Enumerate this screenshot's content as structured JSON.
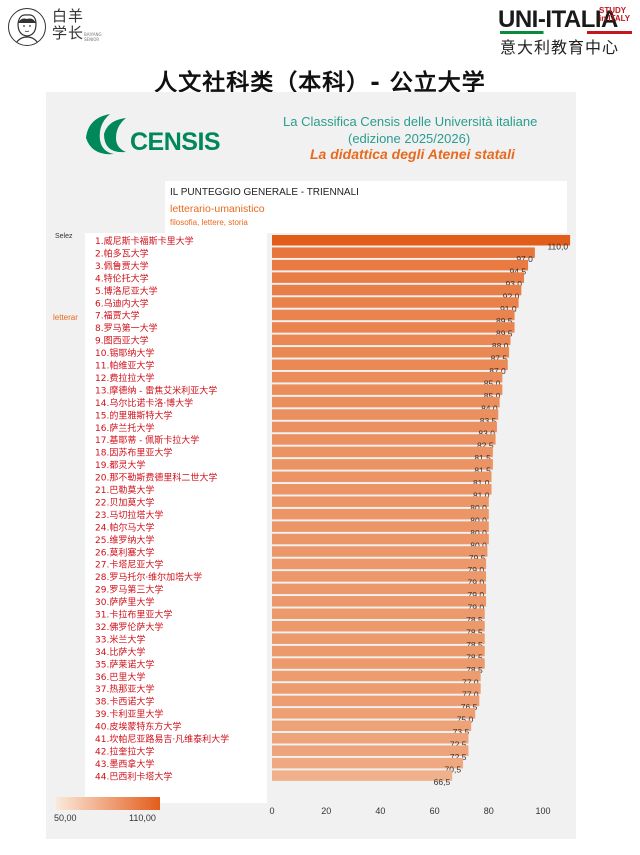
{
  "header": {
    "brand_cn": "白羊\n学长",
    "brand_small": "BAIYANG SENIOR",
    "uni_logo": "UNI-ITALIA",
    "uni_logo_study": "STUDY\nin ITALY",
    "uni_cn": "意大利教育中心",
    "page_title": "人文社科类（本科）- 公立大学"
  },
  "panel": {
    "censis": "CENSIS",
    "heading1": "La Classifica Censis delle Università italiane",
    "heading2": "(edizione 2025/2026)",
    "heading3": "La didattica degli Atenei statali",
    "sub1": "IL PUNTEGGIO GENERALE - TRIENNALI",
    "sub2": "letterario-umanistico",
    "sub3": "filosofia, lettere, storia",
    "sel_label": "Selez",
    "side_label": "letterar",
    "legend_min": "50,00",
    "legend_max": "110,00"
  },
  "colors": {
    "bar_low": "#f5cfb5",
    "bar_high": "#e35d1a",
    "name_text": "#d0101a",
    "censis_green": "#00875a",
    "heading_teal": "#2a9d8f",
    "heading_orange": "#e86a1f"
  },
  "chart_data": {
    "type": "bar",
    "orientation": "horizontal",
    "categories": [
      "1.威尼斯卡福斯卡里大学",
      "2.帕多瓦大学",
      "3.佩鲁贾大学",
      "4.特伦托大学",
      "5.博洛尼亚大学",
      "6.乌迪内大学",
      "7.福贾大学",
      "8.罗马第一大学",
      "9.图西亚大学",
      "10.锡耶纳大学",
      "11.帕维亚大学",
      "12.费拉拉大学",
      "13.摩德纳 - 雷焦艾米利亚大学",
      "14.乌尔比诺卡洛·博大学",
      "15.的里雅斯特大学",
      "16.萨兰托大学",
      "17.基耶蒂 - 佩斯卡拉大学",
      "18.因苏布里亚大学",
      "19.都灵大学",
      "20.那不勒斯费德里科二世大学",
      "21.巴勒莫大学",
      "22.贝加莫大学",
      "23.马切拉塔大学",
      "24.帕尔马大学",
      "25.维罗纳大学",
      "26.莫利塞大学",
      "27.卡塔尼亚大学",
      "28.罗马托尔·维尔加塔大学",
      "29.罗马第三大学",
      "30.萨萨里大学",
      "31.卡拉布里亚大学",
      "32.佛罗伦萨大学",
      "33.米兰大学",
      "34.比萨大学",
      "35.萨莱诺大学",
      "36.巴里大学",
      "37.热那亚大学",
      "38.卡西诺大学",
      "39.卡利亚里大学",
      "40.皮埃蒙特东方大学",
      "41.坎帕尼亚路易吉·凡维泰利大学",
      "42.拉奎拉大学",
      "43.墨西拿大学",
      "44.巴西利卡塔大学"
    ],
    "values": [
      110.0,
      97.0,
      94.5,
      93.0,
      92.0,
      91.0,
      89.5,
      89.5,
      88.0,
      87.5,
      87.0,
      85.0,
      85.0,
      84.0,
      83.5,
      83.0,
      82.5,
      81.5,
      81.5,
      81.0,
      81.0,
      80.0,
      80.0,
      80.0,
      80.0,
      79.5,
      79.0,
      79.0,
      79.0,
      79.0,
      78.5,
      78.5,
      78.5,
      78.5,
      78.5,
      77.0,
      77.0,
      76.5,
      75.0,
      73.5,
      72.5,
      72.5,
      70.5,
      66.5
    ],
    "value_labels": [
      "110,0",
      "97,0",
      "94,5",
      "93,0",
      "92,0",
      "91,0",
      "89,5",
      "89,5",
      "88,0",
      "87,5",
      "87,0",
      "85,0",
      "85,0",
      "84,0",
      "83,5",
      "83,0",
      "82,5",
      "81,5",
      "81,5",
      "81,0",
      "81,0",
      "80,0",
      "80,0",
      "80,0",
      "80,0",
      "79,5",
      "79,0",
      "79,0",
      "79,0",
      "79,0",
      "78,5",
      "78,5",
      "78,5",
      "78,5",
      "78,5",
      "77,0",
      "77,0",
      "76,5",
      "75,0",
      "73,5",
      "72,5",
      "72,5",
      "70,5",
      "66,5"
    ],
    "xticks": [
      0,
      20,
      40,
      60,
      80,
      100
    ],
    "xlim": [
      0,
      110
    ],
    "color_scale": [
      50,
      110
    ],
    "grid": false
  }
}
